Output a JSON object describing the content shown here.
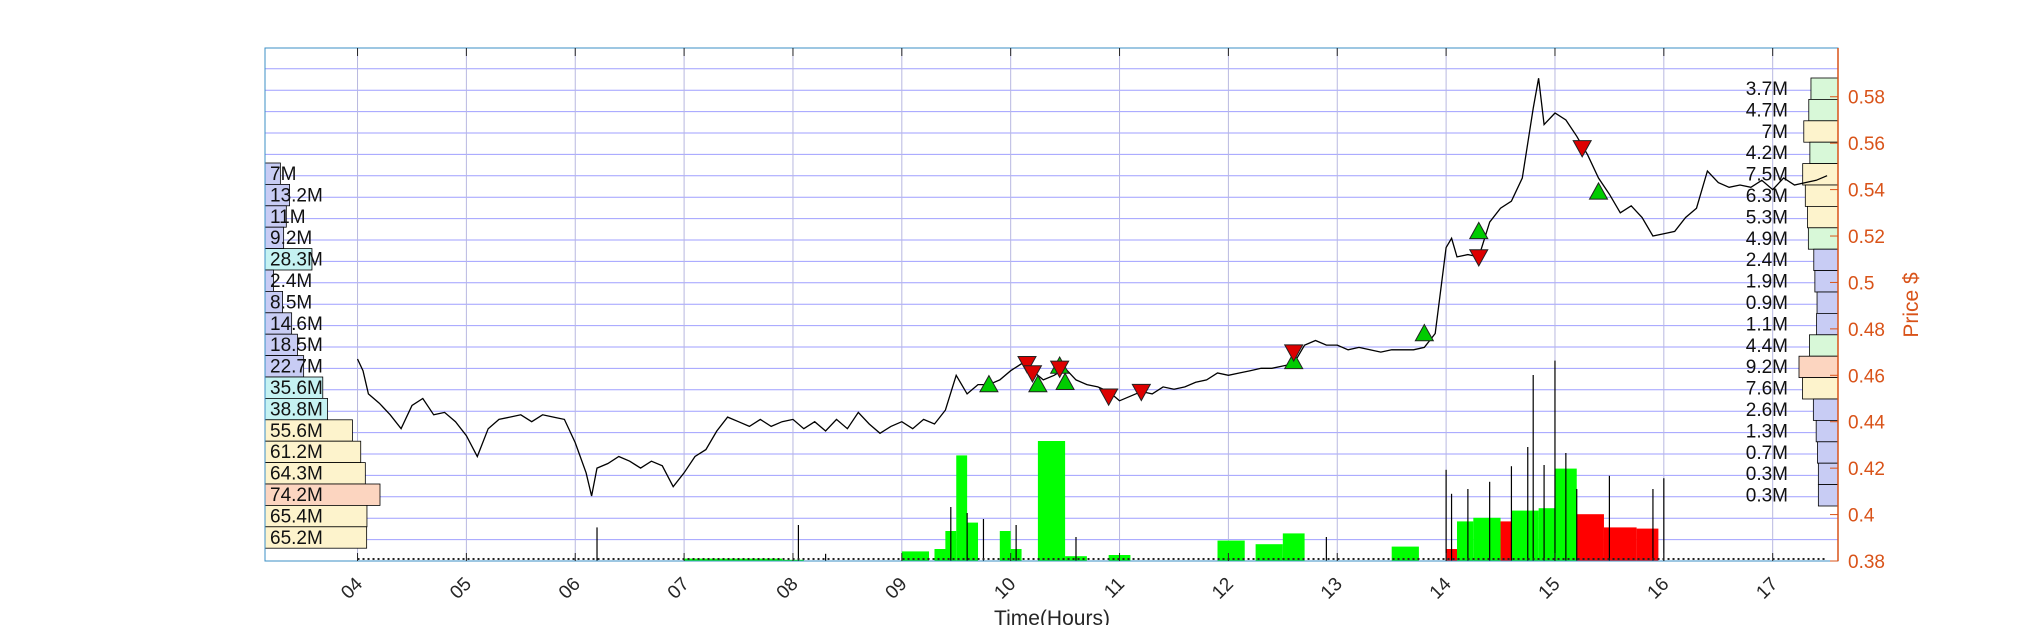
{
  "chart_data": {
    "type": "line",
    "xlabel": "Time(Hours)",
    "ylabel": "Price $",
    "xlim": [
      3.15,
      17.6
    ],
    "ylim": [
      0.38,
      0.601
    ],
    "x_ticks": [
      "04",
      "05",
      "06",
      "07",
      "08",
      "09",
      "10",
      "11",
      "12",
      "13",
      "14",
      "15",
      "16",
      "17"
    ],
    "y_ticks": [
      "0.38",
      "0.4",
      "0.42",
      "0.44",
      "0.46",
      "0.48",
      "0.5",
      "0.52",
      "0.54",
      "0.56",
      "0.58"
    ],
    "grid": true,
    "colors": {
      "price_line": "#000000",
      "axis_right": "#d95319",
      "buy_bar": "#00ff00",
      "sell_bar": "#ff0000",
      "grid": "#8080ff",
      "buy_marker": "#00cc00",
      "sell_marker": "#dd0000"
    },
    "price_series": [
      [
        4.0,
        0.467
      ],
      [
        4.05,
        0.462
      ],
      [
        4.1,
        0.452
      ],
      [
        4.2,
        0.448
      ],
      [
        4.3,
        0.443
      ],
      [
        4.4,
        0.437
      ],
      [
        4.5,
        0.447
      ],
      [
        4.6,
        0.45
      ],
      [
        4.7,
        0.443
      ],
      [
        4.8,
        0.444
      ],
      [
        4.9,
        0.44
      ],
      [
        5.0,
        0.434
      ],
      [
        5.1,
        0.425
      ],
      [
        5.2,
        0.437
      ],
      [
        5.3,
        0.441
      ],
      [
        5.4,
        0.442
      ],
      [
        5.5,
        0.443
      ],
      [
        5.6,
        0.44
      ],
      [
        5.7,
        0.443
      ],
      [
        5.8,
        0.442
      ],
      [
        5.9,
        0.441
      ],
      [
        6.0,
        0.431
      ],
      [
        6.1,
        0.418
      ],
      [
        6.15,
        0.408
      ],
      [
        6.2,
        0.42
      ],
      [
        6.3,
        0.422
      ],
      [
        6.4,
        0.425
      ],
      [
        6.5,
        0.423
      ],
      [
        6.6,
        0.42
      ],
      [
        6.7,
        0.423
      ],
      [
        6.8,
        0.421
      ],
      [
        6.9,
        0.412
      ],
      [
        7.0,
        0.418
      ],
      [
        7.1,
        0.425
      ],
      [
        7.2,
        0.428
      ],
      [
        7.3,
        0.436
      ],
      [
        7.4,
        0.442
      ],
      [
        7.5,
        0.44
      ],
      [
        7.6,
        0.438
      ],
      [
        7.7,
        0.441
      ],
      [
        7.8,
        0.438
      ],
      [
        7.9,
        0.44
      ],
      [
        8.0,
        0.441
      ],
      [
        8.1,
        0.437
      ],
      [
        8.2,
        0.44
      ],
      [
        8.3,
        0.436
      ],
      [
        8.4,
        0.441
      ],
      [
        8.5,
        0.437
      ],
      [
        8.6,
        0.444
      ],
      [
        8.7,
        0.439
      ],
      [
        8.8,
        0.435
      ],
      [
        8.9,
        0.438
      ],
      [
        9.0,
        0.44
      ],
      [
        9.1,
        0.437
      ],
      [
        9.2,
        0.441
      ],
      [
        9.3,
        0.439
      ],
      [
        9.4,
        0.445
      ],
      [
        9.5,
        0.46
      ],
      [
        9.6,
        0.452
      ],
      [
        9.7,
        0.456
      ],
      [
        9.8,
        0.456
      ],
      [
        9.9,
        0.458
      ],
      [
        10.0,
        0.462
      ],
      [
        10.1,
        0.465
      ],
      [
        10.2,
        0.462
      ],
      [
        10.3,
        0.458
      ],
      [
        10.4,
        0.46
      ],
      [
        10.5,
        0.463
      ],
      [
        10.6,
        0.458
      ],
      [
        10.7,
        0.456
      ],
      [
        10.8,
        0.455
      ],
      [
        10.9,
        0.453
      ],
      [
        11.0,
        0.449
      ],
      [
        11.1,
        0.451
      ],
      [
        11.2,
        0.453
      ],
      [
        11.3,
        0.452
      ],
      [
        11.4,
        0.455
      ],
      [
        11.5,
        0.454
      ],
      [
        11.6,
        0.455
      ],
      [
        11.7,
        0.457
      ],
      [
        11.8,
        0.458
      ],
      [
        11.9,
        0.461
      ],
      [
        12.0,
        0.46
      ],
      [
        12.1,
        0.461
      ],
      [
        12.2,
        0.462
      ],
      [
        12.3,
        0.463
      ],
      [
        12.4,
        0.463
      ],
      [
        12.5,
        0.464
      ],
      [
        12.6,
        0.465
      ],
      [
        12.7,
        0.473
      ],
      [
        12.8,
        0.475
      ],
      [
        12.9,
        0.473
      ],
      [
        13.0,
        0.473
      ],
      [
        13.1,
        0.471
      ],
      [
        13.2,
        0.472
      ],
      [
        13.3,
        0.471
      ],
      [
        13.4,
        0.47
      ],
      [
        13.5,
        0.471
      ],
      [
        13.6,
        0.471
      ],
      [
        13.7,
        0.471
      ],
      [
        13.8,
        0.472
      ],
      [
        13.9,
        0.478
      ],
      [
        14.0,
        0.515
      ],
      [
        14.05,
        0.519
      ],
      [
        14.1,
        0.511
      ],
      [
        14.2,
        0.512
      ],
      [
        14.3,
        0.511
      ],
      [
        14.4,
        0.526
      ],
      [
        14.5,
        0.532
      ],
      [
        14.6,
        0.535
      ],
      [
        14.7,
        0.545
      ],
      [
        14.8,
        0.575
      ],
      [
        14.85,
        0.588
      ],
      [
        14.9,
        0.568
      ],
      [
        15.0,
        0.573
      ],
      [
        15.1,
        0.57
      ],
      [
        15.2,
        0.563
      ],
      [
        15.3,
        0.555
      ],
      [
        15.4,
        0.545
      ],
      [
        15.5,
        0.538
      ],
      [
        15.6,
        0.53
      ],
      [
        15.7,
        0.533
      ],
      [
        15.8,
        0.528
      ],
      [
        15.9,
        0.52
      ],
      [
        16.0,
        0.521
      ],
      [
        16.1,
        0.522
      ],
      [
        16.2,
        0.528
      ],
      [
        16.3,
        0.532
      ],
      [
        16.4,
        0.548
      ],
      [
        16.5,
        0.543
      ],
      [
        16.6,
        0.541
      ],
      [
        16.7,
        0.542
      ],
      [
        16.8,
        0.541
      ],
      [
        16.9,
        0.544
      ],
      [
        17.0,
        0.54
      ],
      [
        17.1,
        0.545
      ],
      [
        17.2,
        0.542
      ],
      [
        17.3,
        0.543
      ],
      [
        17.4,
        0.544
      ],
      [
        17.5,
        0.546
      ]
    ],
    "buy_markers": [
      [
        9.8,
        0.456
      ],
      [
        10.25,
        0.456
      ],
      [
        10.45,
        0.464
      ],
      [
        10.5,
        0.457
      ],
      [
        12.6,
        0.466
      ],
      [
        13.8,
        0.478
      ],
      [
        14.3,
        0.522
      ],
      [
        15.4,
        0.539
      ]
    ],
    "sell_markers": [
      [
        10.15,
        0.465
      ],
      [
        10.2,
        0.461
      ],
      [
        10.45,
        0.463
      ],
      [
        10.9,
        0.451
      ],
      [
        11.2,
        0.453
      ],
      [
        12.6,
        0.47
      ],
      [
        14.3,
        0.511
      ],
      [
        15.25,
        0.558
      ]
    ],
    "volume_bars": [
      {
        "x0": 7.0,
        "x1": 7.9,
        "h": 0.02,
        "side": "buy"
      },
      {
        "x0": 7.9,
        "x1": 8.1,
        "h": 0.01,
        "side": "buy"
      },
      {
        "x0": 9.0,
        "x1": 9.25,
        "h": 0.08,
        "side": "buy"
      },
      {
        "x0": 9.3,
        "x1": 9.45,
        "h": 0.1,
        "side": "buy"
      },
      {
        "x0": 9.4,
        "x1": 9.5,
        "h": 0.25,
        "side": "buy"
      },
      {
        "x0": 9.5,
        "x1": 9.6,
        "h": 0.88,
        "side": "buy"
      },
      {
        "x0": 9.6,
        "x1": 9.7,
        "h": 0.32,
        "side": "buy"
      },
      {
        "x0": 9.9,
        "x1": 10.0,
        "h": 0.25,
        "side": "buy"
      },
      {
        "x0": 10.0,
        "x1": 10.1,
        "h": 0.1,
        "side": "buy"
      },
      {
        "x0": 10.25,
        "x1": 10.5,
        "h": 1.0,
        "side": "buy"
      },
      {
        "x0": 10.5,
        "x1": 10.7,
        "h": 0.04,
        "side": "buy"
      },
      {
        "x0": 10.9,
        "x1": 11.1,
        "h": 0.05,
        "side": "buy"
      },
      {
        "x0": 11.9,
        "x1": 12.15,
        "h": 0.17,
        "side": "buy"
      },
      {
        "x0": 12.25,
        "x1": 12.5,
        "h": 0.14,
        "side": "buy"
      },
      {
        "x0": 12.5,
        "x1": 12.7,
        "h": 0.23,
        "side": "buy"
      },
      {
        "x0": 13.5,
        "x1": 13.75,
        "h": 0.12,
        "side": "buy"
      },
      {
        "x0": 14.0,
        "x1": 14.1,
        "h": 0.1,
        "side": "sell"
      },
      {
        "x0": 14.1,
        "x1": 14.25,
        "h": 0.33,
        "side": "buy"
      },
      {
        "x0": 14.25,
        "x1": 14.5,
        "h": 0.36,
        "side": "buy"
      },
      {
        "x0": 14.5,
        "x1": 14.75,
        "h": 0.33,
        "side": "sell"
      },
      {
        "x0": 14.6,
        "x1": 14.85,
        "h": 0.42,
        "side": "buy"
      },
      {
        "x0": 14.85,
        "x1": 15.0,
        "h": 0.44,
        "side": "buy"
      },
      {
        "x0": 15.0,
        "x1": 15.2,
        "h": 0.77,
        "side": "buy"
      },
      {
        "x0": 15.2,
        "x1": 15.45,
        "h": 0.39,
        "side": "sell"
      },
      {
        "x0": 15.45,
        "x1": 15.75,
        "h": 0.28,
        "side": "sell"
      },
      {
        "x0": 15.75,
        "x1": 15.95,
        "h": 0.27,
        "side": "sell"
      }
    ],
    "volume_spikes": [
      [
        6.2,
        0.28
      ],
      [
        8.05,
        0.3
      ],
      [
        8.3,
        0.06
      ],
      [
        9.45,
        0.45
      ],
      [
        9.6,
        0.4
      ],
      [
        9.75,
        0.35
      ],
      [
        10.05,
        0.3
      ],
      [
        10.6,
        0.2
      ],
      [
        12.9,
        0.2
      ],
      [
        14.0,
        0.76
      ],
      [
        14.05,
        0.56
      ],
      [
        14.2,
        0.6
      ],
      [
        14.4,
        0.66
      ],
      [
        14.6,
        0.79
      ],
      [
        14.75,
        0.95
      ],
      [
        14.8,
        1.55
      ],
      [
        14.9,
        0.8
      ],
      [
        15.0,
        1.67
      ],
      [
        15.1,
        0.9
      ],
      [
        15.2,
        0.6
      ],
      [
        15.5,
        0.71
      ],
      [
        15.9,
        0.6
      ],
      [
        16.0,
        0.69
      ]
    ],
    "left_volume_profile": [
      {
        "label": "7M",
        "value": 7
      },
      {
        "label": "13.2M",
        "value": 13.2
      },
      {
        "label": "11M",
        "value": 11
      },
      {
        "label": "9.2M",
        "value": 9.2
      },
      {
        "label": "28.3M",
        "value": 28.3
      },
      {
        "label": "2.4M",
        "value": 2.4
      },
      {
        "label": "8.5M",
        "value": 8.5
      },
      {
        "label": "14.6M",
        "value": 14.6
      },
      {
        "label": "18.5M",
        "value": 18.5
      },
      {
        "label": "22.7M",
        "value": 22.7
      },
      {
        "label": "35.6M",
        "value": 35.6
      },
      {
        "label": "38.8M",
        "value": 38.8
      },
      {
        "label": "55.6M",
        "value": 55.6
      },
      {
        "label": "61.2M",
        "value": 61.2
      },
      {
        "label": "64.3M",
        "value": 64.3
      },
      {
        "label": "74.2M",
        "value": 74.2
      },
      {
        "label": "65.4M",
        "value": 65.4
      },
      {
        "label": "65.2M",
        "value": 65.2
      }
    ],
    "right_volume_profile": [
      {
        "label": "3.7M",
        "value": 3.7
      },
      {
        "label": "4.7M",
        "value": 4.7
      },
      {
        "label": "7M",
        "value": 7
      },
      {
        "label": "4.2M",
        "value": 4.2
      },
      {
        "label": "7.5M",
        "value": 7.5
      },
      {
        "label": "6.3M",
        "value": 6.3
      },
      {
        "label": "5.3M",
        "value": 5.3
      },
      {
        "label": "4.9M",
        "value": 4.9
      },
      {
        "label": "2.4M",
        "value": 2.4
      },
      {
        "label": "1.9M",
        "value": 1.9
      },
      {
        "label": "0.9M",
        "value": 0.9
      },
      {
        "label": "1.1M",
        "value": 1.1
      },
      {
        "label": "4.4M",
        "value": 4.4
      },
      {
        "label": "9.2M",
        "value": 9.2
      },
      {
        "label": "7.6M",
        "value": 7.6
      },
      {
        "label": "2.6M",
        "value": 2.6
      },
      {
        "label": "1.3M",
        "value": 1.3
      },
      {
        "label": "0.7M",
        "value": 0.7
      },
      {
        "label": "0.3M",
        "value": 0.3
      },
      {
        "label": "0.3M",
        "value": 0.3
      }
    ]
  }
}
